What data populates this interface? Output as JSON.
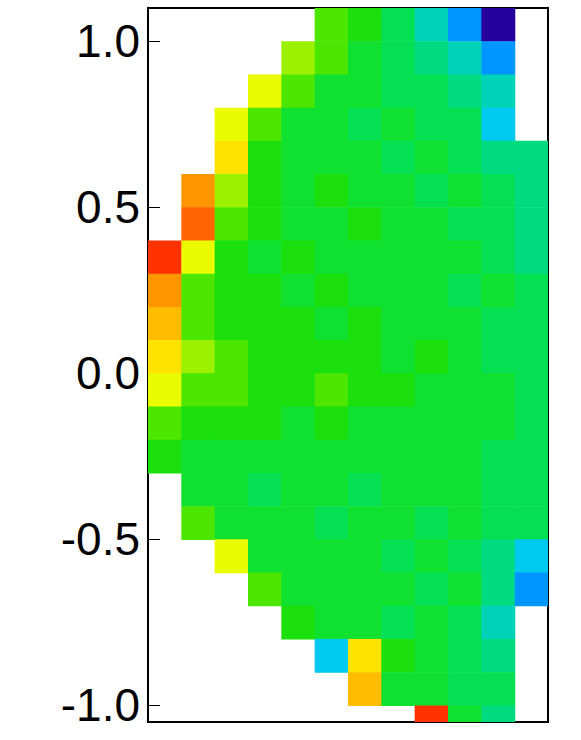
{
  "chart_data": {
    "type": "heatmap",
    "xlim": [
      0,
      1.2
    ],
    "xticks": [
      0,
      0.1,
      0.2,
      0.3,
      0.4,
      0.5,
      0.6,
      0.7,
      0.8,
      0.9,
      1.0,
      1.1,
      1.2
    ],
    "ylim": [
      -1.05,
      1.1
    ],
    "yticks": [
      {
        "value": -1,
        "label": "-1.0"
      },
      {
        "value": -0.5,
        "label": "-0.5"
      },
      {
        "value": 0,
        "label": "0.0"
      },
      {
        "value": 0.5,
        "label": "0.5"
      },
      {
        "value": 1,
        "label": "1.0"
      }
    ],
    "tick_labels": "y",
    "grid": false,
    "color_range": [
      0,
      1
    ],
    "cells": {
      "x": [
        0.05,
        0.15,
        0.25,
        0.35,
        0.45,
        0.55,
        0.65,
        0.75,
        0.85,
        0.95,
        1.05,
        1.15
      ],
      "y": [
        1.05,
        0.95,
        0.85,
        0.75,
        0.65,
        0.55,
        0.45,
        0.35,
        0.25,
        0.15,
        0.05,
        -0.05,
        -0.15,
        -0.25,
        -0.35,
        -0.45,
        -0.55,
        -0.65,
        -0.75,
        -0.85,
        -0.95,
        -1.05
      ],
      "values": [
        [
          null,
          null,
          null,
          null,
          null,
          0.6,
          0.55,
          0.45,
          0.35,
          0.25,
          0.05,
          null
        ],
        [
          null,
          null,
          null,
          null,
          0.65,
          0.6,
          0.5,
          0.45,
          0.4,
          0.35,
          0.25,
          null
        ],
        [
          null,
          null,
          null,
          0.7,
          0.6,
          0.5,
          0.5,
          0.45,
          0.45,
          0.4,
          0.35,
          null
        ],
        [
          null,
          null,
          0.7,
          0.6,
          0.5,
          0.5,
          0.45,
          0.5,
          0.45,
          0.45,
          0.3,
          null
        ],
        [
          null,
          null,
          0.75,
          0.55,
          0.5,
          0.5,
          0.5,
          0.45,
          0.5,
          0.45,
          0.4,
          0.4
        ],
        [
          null,
          0.85,
          0.65,
          0.55,
          0.5,
          0.55,
          0.5,
          0.5,
          0.45,
          0.5,
          0.45,
          0.4
        ],
        [
          null,
          0.9,
          0.6,
          0.55,
          0.5,
          0.5,
          0.55,
          0.5,
          0.5,
          0.45,
          0.45,
          0.4
        ],
        [
          0.95,
          0.7,
          0.55,
          0.5,
          0.55,
          0.5,
          0.5,
          0.5,
          0.5,
          0.5,
          0.45,
          0.4
        ],
        [
          0.85,
          0.6,
          0.55,
          0.55,
          0.5,
          0.55,
          0.5,
          0.5,
          0.5,
          0.45,
          0.5,
          0.45
        ],
        [
          0.8,
          0.6,
          0.55,
          0.55,
          0.55,
          0.5,
          0.55,
          0.5,
          0.5,
          0.5,
          0.45,
          0.45
        ],
        [
          0.75,
          0.65,
          0.6,
          0.55,
          0.55,
          0.55,
          0.55,
          0.5,
          0.55,
          0.5,
          0.45,
          0.45
        ],
        [
          0.7,
          0.6,
          0.6,
          0.55,
          0.55,
          0.6,
          0.55,
          0.55,
          0.5,
          0.5,
          0.5,
          0.45
        ],
        [
          0.6,
          0.55,
          0.55,
          0.55,
          0.5,
          0.55,
          0.5,
          0.5,
          0.5,
          0.5,
          0.5,
          0.45
        ],
        [
          0.55,
          0.5,
          0.5,
          0.5,
          0.5,
          0.5,
          0.5,
          0.5,
          0.5,
          0.5,
          0.45,
          0.45
        ],
        [
          null,
          0.5,
          0.5,
          0.45,
          0.5,
          0.5,
          0.45,
          0.5,
          0.5,
          0.5,
          0.45,
          0.45
        ],
        [
          null,
          0.6,
          0.5,
          0.5,
          0.5,
          0.45,
          0.5,
          0.5,
          0.45,
          0.5,
          0.45,
          0.45
        ],
        [
          null,
          null,
          0.7,
          0.5,
          0.5,
          0.5,
          0.5,
          0.45,
          0.5,
          0.45,
          0.4,
          0.3
        ],
        [
          null,
          null,
          null,
          0.6,
          0.5,
          0.5,
          0.5,
          0.5,
          0.45,
          0.5,
          0.4,
          0.25
        ],
        [
          null,
          null,
          null,
          null,
          0.55,
          0.5,
          0.5,
          0.45,
          0.5,
          0.45,
          0.35,
          null
        ],
        [
          null,
          null,
          null,
          null,
          null,
          0.3,
          0.75,
          0.55,
          0.5,
          0.45,
          0.4,
          null
        ],
        [
          null,
          null,
          null,
          null,
          null,
          null,
          0.8,
          0.5,
          0.5,
          0.45,
          0.45,
          null
        ],
        [
          null,
          null,
          null,
          null,
          null,
          null,
          null,
          null,
          0.95,
          0.5,
          0.4,
          null
        ]
      ]
    }
  }
}
